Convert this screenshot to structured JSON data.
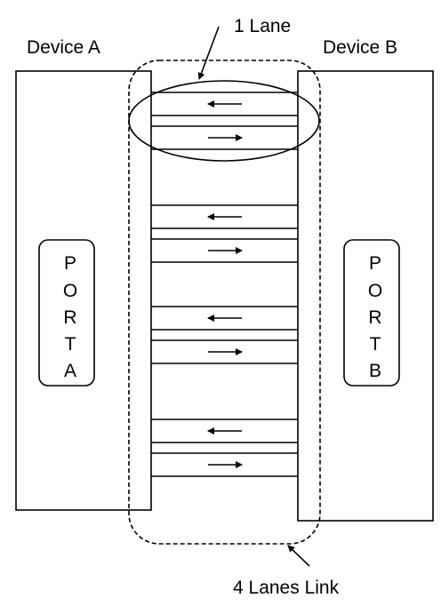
{
  "device_a": {
    "title": "Device A",
    "port_letters": [
      "P",
      "O",
      "R",
      "T",
      "A"
    ]
  },
  "device_b": {
    "title": "Device B",
    "port_letters": [
      "P",
      "O",
      "R",
      "T",
      "B"
    ]
  },
  "annotations": {
    "lane": "1 Lane",
    "link": "4 Lanes Link"
  },
  "lanes": [
    {
      "index": 1,
      "directions": [
        "left",
        "right"
      ]
    },
    {
      "index": 2,
      "directions": [
        "left",
        "right"
      ]
    },
    {
      "index": 3,
      "directions": [
        "left",
        "right"
      ]
    },
    {
      "index": 4,
      "directions": [
        "left",
        "right"
      ]
    }
  ]
}
